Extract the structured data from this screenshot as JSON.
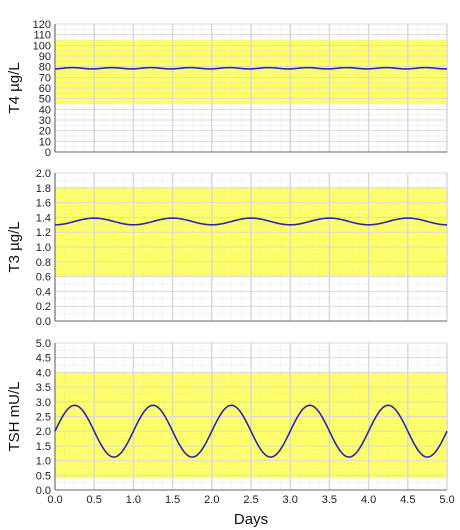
{
  "chart_data": [
    {
      "type": "line",
      "ylabel": "T4 µg/L",
      "ylim": [
        0,
        120
      ],
      "yticks": [
        "0",
        "10",
        "20",
        "30",
        "40",
        "50",
        "60",
        "70",
        "80",
        "90",
        "100",
        "110",
        "120"
      ],
      "ytick_values": [
        0,
        10,
        20,
        30,
        40,
        50,
        60,
        70,
        80,
        90,
        100,
        110,
        120
      ],
      "normal_range": [
        45,
        105
      ],
      "series": [
        {
          "mean": 78.5,
          "amplitude": 0.6,
          "period_days": 0.5,
          "phase_days": 0.1
        }
      ]
    },
    {
      "type": "line",
      "ylabel": "T3 µg/L",
      "ylim": [
        0,
        2.0
      ],
      "yticks": [
        "0.0",
        "0.2",
        "0.4",
        "0.6",
        "0.8",
        "1.0",
        "1.2",
        "1.4",
        "1.6",
        "1.8",
        "2.0"
      ],
      "ytick_values": [
        0,
        0.2,
        0.4,
        0.6,
        0.8,
        1.0,
        1.2,
        1.4,
        1.6,
        1.8,
        2.0
      ],
      "normal_range": [
        0.6,
        1.8
      ],
      "series": [
        {
          "mean": 1.345,
          "amplitude": 0.045,
          "period_days": 1.0,
          "phase_days": 0.25
        }
      ]
    },
    {
      "type": "line",
      "ylabel": "TSH mU/L",
      "ylim": [
        0,
        5.0
      ],
      "yticks": [
        "0.0",
        "0.5",
        "1.0",
        "1.5",
        "2.0",
        "2.5",
        "3.0",
        "3.5",
        "4.0",
        "4.5",
        "5.0"
      ],
      "ytick_values": [
        0,
        0.5,
        1.0,
        1.5,
        2.0,
        2.5,
        3.0,
        3.5,
        4.0,
        4.5,
        5.0
      ],
      "normal_range": [
        0.4,
        4.0
      ],
      "series": [
        {
          "mean": 2.0,
          "amplitude": 0.88,
          "period_days": 1.0,
          "phase_days": 0.0
        }
      ]
    }
  ],
  "x_axis": {
    "label": "Days",
    "xlim": [
      0,
      5.0
    ],
    "ticks": [
      "0.0",
      "0.5",
      "1.0",
      "1.5",
      "2.0",
      "2.5",
      "3.0",
      "3.5",
      "4.0",
      "4.5",
      "5.0"
    ],
    "tick_values": [
      0,
      0.5,
      1.0,
      1.5,
      2.0,
      2.5,
      3.0,
      3.5,
      4.0,
      4.5,
      5.0
    ]
  },
  "colors": {
    "normal_range": "#ffff66",
    "line": "#2a2aa8",
    "grid": "#d9d9d9",
    "axis": "#666666"
  }
}
